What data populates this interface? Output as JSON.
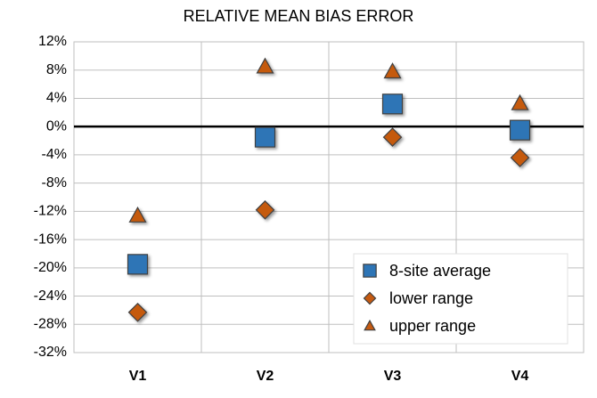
{
  "chart_data": {
    "type": "scatter",
    "title": "RELATIVE MEAN BIAS ERROR",
    "categories": [
      "V1",
      "V2",
      "V3",
      "V4"
    ],
    "ylim": [
      -32,
      12
    ],
    "yticks": [
      {
        "value": 12,
        "label": "12%"
      },
      {
        "value": 8,
        "label": "8%"
      },
      {
        "value": 4,
        "label": "4%"
      },
      {
        "value": 0,
        "label": "0%"
      },
      {
        "value": -4,
        "label": "-4%"
      },
      {
        "value": -8,
        "label": "-8%"
      },
      {
        "value": -12,
        "label": "-12%"
      },
      {
        "value": -16,
        "label": "-16%"
      },
      {
        "value": -20,
        "label": "-20%"
      },
      {
        "value": -24,
        "label": "-24%"
      },
      {
        "value": -28,
        "label": "-28%"
      },
      {
        "value": -32,
        "label": "-32%"
      }
    ],
    "grid": true,
    "zero_line": true,
    "legend": "bottom-right",
    "series": [
      {
        "name": "8-site average",
        "color": "#2e75b6",
        "marker": "square",
        "values": [
          -19.5,
          -1.5,
          3.2,
          -0.5
        ]
      },
      {
        "name": "lower range",
        "color": "#c55a11",
        "marker": "diamond",
        "values": [
          -26.3,
          -11.8,
          -1.5,
          -4.4
        ]
      },
      {
        "name": "upper range",
        "color": "#c55a11",
        "marker": "triangle",
        "values": [
          -12.6,
          8.5,
          7.8,
          3.3
        ]
      }
    ]
  }
}
